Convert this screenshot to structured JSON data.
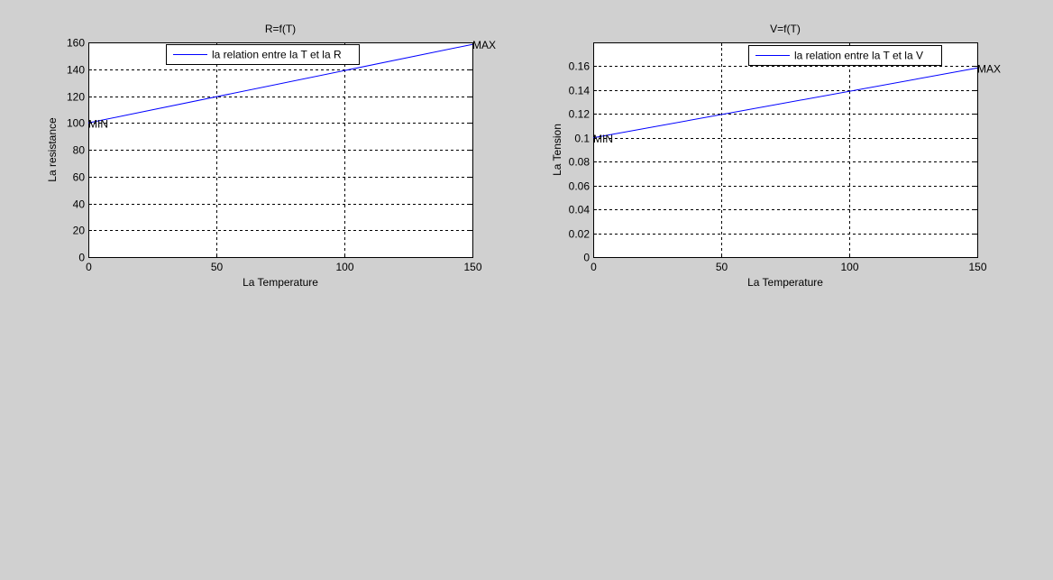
{
  "background_color": "#d0d0d0",
  "line_color": "#0000ff",
  "chart_data": [
    {
      "type": "line",
      "title": "R=f(T)",
      "xlabel": "La Temperature",
      "ylabel": "La resistance",
      "xlim": [
        0,
        150
      ],
      "ylim": [
        0,
        160
      ],
      "xticks": [
        0,
        50,
        100,
        150
      ],
      "yticks": [
        0,
        20,
        40,
        60,
        80,
        100,
        120,
        140,
        160
      ],
      "xtick_labels": [
        "0",
        "50",
        "100",
        "150"
      ],
      "ytick_labels": [
        "0",
        "20",
        "40",
        "60",
        "80",
        "100",
        "120",
        "140",
        "160"
      ],
      "grid": true,
      "legend_position": "top",
      "series": [
        {
          "name": "la relation entre la T et la R",
          "x": [
            0,
            150
          ],
          "y": [
            100,
            158.5
          ]
        }
      ],
      "annotations": [
        {
          "text": "MIN",
          "x": 0,
          "y": 100
        },
        {
          "text": "MAX",
          "x": 150,
          "y": 158.5
        }
      ]
    },
    {
      "type": "line",
      "title": "V=f(T)",
      "xlabel": "La Temperature",
      "ylabel": "La Tension",
      "xlim": [
        0,
        150
      ],
      "ylim": [
        0,
        0.18
      ],
      "xticks": [
        0,
        50,
        100,
        150
      ],
      "yticks": [
        0,
        0.02,
        0.04,
        0.06,
        0.08,
        0.1,
        0.12,
        0.14,
        0.16
      ],
      "xtick_labels": [
        "0",
        "50",
        "100",
        "150"
      ],
      "ytick_labels": [
        "0",
        "0.02",
        "0.04",
        "0.06",
        "0.08",
        "0.1",
        "0.12",
        "0.14",
        "0.16"
      ],
      "grid": true,
      "legend_position": "top-right",
      "series": [
        {
          "name": "la relation entre la T et la V",
          "x": [
            0,
            150
          ],
          "y": [
            0.1,
            0.1585
          ]
        }
      ],
      "annotations": [
        {
          "text": "MIN",
          "x": 0,
          "y": 0.1
        },
        {
          "text": "MAX",
          "x": 150,
          "y": 0.1585
        }
      ]
    }
  ]
}
